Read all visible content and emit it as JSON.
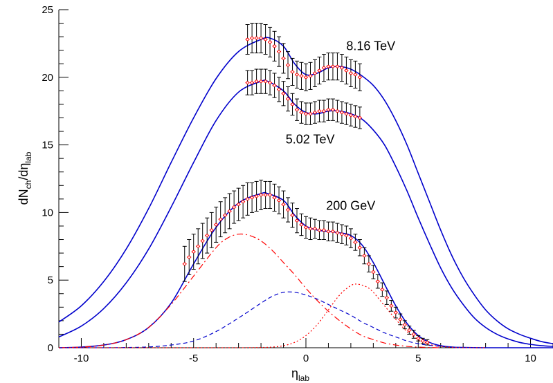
{
  "chart_data": {
    "type": "line",
    "title": "",
    "xlabel": "η",
    "xlabel_sub": "lab",
    "ylabel_main": "dN",
    "ylabel_sub1": "ch",
    "ylabel_mid": "/dη",
    "ylabel_sub2": "lab",
    "xlim": [
      -11,
      11
    ],
    "ylim": [
      0,
      25
    ],
    "xticks": [
      -10,
      -5,
      0,
      5,
      10
    ],
    "yticks": [
      0,
      5,
      10,
      15,
      20,
      25
    ],
    "grid": false,
    "annotations": [
      {
        "text": "8.16 TeV",
        "x": 1.8,
        "y": 22.0
      },
      {
        "text": "5.02 TeV",
        "x": -0.9,
        "y": 15.1
      },
      {
        "text": "200 GeV",
        "x": 0.9,
        "y": 10.2
      }
    ],
    "series": [
      {
        "style": "solid",
        "color": "#0000cc",
        "x": [
          -11,
          -10,
          -9,
          -8,
          -7,
          -6,
          -5,
          -4,
          -3,
          -2,
          -1.6,
          -1,
          -0.5,
          0,
          0.5,
          1,
          1.5,
          2,
          2.5,
          3,
          3.5,
          4,
          4.5,
          5,
          5.5,
          6,
          6.5,
          7,
          7.5,
          8,
          8.5,
          9,
          9.5,
          10,
          10.5,
          11
        ],
        "y": [
          1.9,
          3.1,
          4.9,
          7.3,
          10.3,
          13.7,
          17.0,
          19.9,
          21.9,
          22.8,
          22.9,
          22.3,
          21.0,
          20.2,
          20.3,
          20.7,
          20.8,
          20.6,
          20.1,
          19.4,
          18.3,
          16.8,
          15.0,
          12.9,
          10.8,
          8.7,
          6.8,
          5.2,
          3.9,
          2.8,
          2.0,
          1.4,
          1.0,
          0.7,
          0.45,
          0.3
        ]
      },
      {
        "style": "solid",
        "color": "#0000cc",
        "x": [
          -11,
          -10,
          -9,
          -8,
          -7,
          -6,
          -5,
          -4,
          -3,
          -2,
          -1.7,
          -1,
          -0.5,
          0,
          0.5,
          1,
          1.5,
          2,
          2.5,
          3,
          3.5,
          4,
          4.5,
          5,
          5.5,
          6,
          6.5,
          7,
          7.5,
          8,
          8.5,
          9,
          9.5,
          10,
          10.5,
          11
        ],
        "y": [
          0.8,
          1.6,
          2.9,
          4.8,
          7.3,
          10.4,
          13.7,
          16.8,
          18.9,
          19.7,
          19.7,
          19.0,
          18.0,
          17.4,
          17.3,
          17.5,
          17.5,
          17.3,
          16.9,
          16.1,
          15.0,
          13.4,
          11.6,
          9.6,
          7.7,
          5.9,
          4.4,
          3.2,
          2.2,
          1.5,
          1.0,
          0.65,
          0.4,
          0.25,
          0.15,
          0.1
        ]
      },
      {
        "style": "solid",
        "color": "#0000cc",
        "x": [
          -11,
          -10,
          -9,
          -8,
          -7,
          -6,
          -5,
          -4,
          -3,
          -2,
          -1.7,
          -1,
          -0.5,
          0,
          0.5,
          1,
          1.5,
          2,
          2.5,
          3,
          3.5,
          4,
          4.5,
          5,
          5.5,
          6,
          6.5,
          7,
          8,
          9,
          10,
          11
        ],
        "y": [
          0.0,
          0.05,
          0.2,
          0.6,
          1.5,
          3.3,
          6.2,
          8.9,
          10.7,
          11.4,
          11.4,
          10.9,
          9.8,
          9.0,
          8.7,
          8.6,
          8.5,
          8.3,
          7.6,
          6.3,
          4.7,
          3.1,
          1.8,
          0.9,
          0.4,
          0.15,
          0.05,
          0.02,
          0.0,
          0.0,
          0.0,
          0.0
        ]
      },
      {
        "style": "dashdot",
        "color": "#ff0000",
        "x": [
          -11,
          -10,
          -9,
          -8,
          -7,
          -6,
          -5,
          -4,
          -3.5,
          -3,
          -2.5,
          -2,
          -1.5,
          -1,
          -0.5,
          0,
          0.5,
          1,
          1.5,
          2,
          2.5,
          3,
          3.5,
          4,
          4.5,
          5,
          5.5,
          6
        ],
        "y": [
          0.0,
          0.05,
          0.2,
          0.6,
          1.5,
          3.2,
          5.3,
          7.4,
          8.1,
          8.4,
          8.3,
          7.9,
          7.2,
          6.3,
          5.4,
          4.4,
          3.5,
          2.7,
          2.0,
          1.4,
          0.9,
          0.6,
          0.35,
          0.2,
          0.1,
          0.05,
          0.02,
          0.0
        ]
      },
      {
        "style": "dashed",
        "color": "#0000cc",
        "x": [
          -11,
          -10,
          -9,
          -8,
          -7,
          -6,
          -5,
          -4,
          -3,
          -2,
          -1.5,
          -1,
          -0.5,
          0,
          0.5,
          1,
          1.5,
          2,
          2.5,
          3,
          3.5,
          4,
          4.5,
          5,
          5.5,
          6,
          6.5,
          7,
          8
        ],
        "y": [
          0.0,
          0.0,
          0.0,
          0.02,
          0.06,
          0.2,
          0.5,
          1.2,
          2.2,
          3.3,
          3.8,
          4.1,
          4.1,
          3.9,
          3.6,
          3.2,
          2.8,
          2.4,
          1.9,
          1.5,
          1.1,
          0.8,
          0.5,
          0.3,
          0.18,
          0.1,
          0.05,
          0.02,
          0.0
        ]
      },
      {
        "style": "dotted",
        "color": "#ff0000",
        "x": [
          -11,
          -8,
          -6,
          -4,
          -3,
          -2,
          -1.5,
          -1,
          -0.5,
          0,
          0.5,
          1,
          1.5,
          2,
          2.3,
          2.7,
          3,
          3.5,
          4,
          4.5,
          5,
          5.5,
          6,
          6.5,
          7,
          8
        ],
        "y": [
          0.0,
          0.0,
          0.0,
          0.0,
          0.0,
          0.02,
          0.05,
          0.15,
          0.4,
          0.9,
          1.7,
          2.8,
          3.9,
          4.6,
          4.7,
          4.5,
          4.1,
          3.1,
          2.1,
          1.2,
          0.6,
          0.25,
          0.1,
          0.03,
          0.0,
          0.0
        ]
      }
    ],
    "data_points": [
      {
        "label": "8.16 TeV",
        "color": "#ff0000",
        "err_color": "#000000",
        "x": [
          -2.6,
          -2.4,
          -2.2,
          -2.0,
          -1.8,
          -1.6,
          -1.4,
          -1.2,
          -1.0,
          -0.8,
          -0.6,
          -0.4,
          -0.2,
          0.0,
          0.2,
          0.4,
          0.6,
          0.8,
          1.0,
          1.2,
          1.4,
          1.6,
          1.8,
          2.0,
          2.2,
          2.4
        ],
        "y": [
          22.8,
          22.9,
          22.9,
          22.9,
          22.8,
          22.6,
          22.3,
          21.9,
          21.4,
          20.9,
          20.4,
          20.2,
          20.1,
          20.0,
          20.1,
          20.3,
          20.5,
          20.7,
          20.8,
          20.8,
          20.8,
          20.7,
          20.5,
          20.3,
          20.2,
          20.0
        ],
        "err": [
          1.1,
          1.1,
          1.1,
          1.1,
          1.1,
          1.1,
          1.1,
          1.1,
          1.1,
          1.0,
          1.0,
          1.0,
          1.0,
          1.0,
          1.0,
          1.0,
          1.0,
          1.0,
          1.0,
          1.0,
          1.0,
          1.0,
          1.0,
          1.0,
          1.0,
          1.0
        ]
      },
      {
        "label": "5.02 TeV",
        "color": "#ff0000",
        "err_color": "#000000",
        "x": [
          -2.6,
          -2.4,
          -2.2,
          -2.0,
          -1.8,
          -1.6,
          -1.4,
          -1.2,
          -1.0,
          -0.8,
          -0.6,
          -0.4,
          -0.2,
          0.0,
          0.2,
          0.4,
          0.6,
          0.8,
          1.0,
          1.2,
          1.4,
          1.6,
          1.8,
          2.0,
          2.2,
          2.4
        ],
        "y": [
          19.6,
          19.6,
          19.7,
          19.7,
          19.7,
          19.6,
          19.4,
          19.1,
          18.8,
          18.4,
          18.0,
          17.6,
          17.4,
          17.3,
          17.3,
          17.4,
          17.5,
          17.5,
          17.6,
          17.6,
          17.5,
          17.4,
          17.3,
          17.2,
          17.1,
          17.0
        ],
        "err": [
          0.9,
          0.9,
          0.9,
          0.9,
          0.9,
          0.9,
          0.9,
          0.9,
          0.9,
          0.9,
          0.8,
          0.8,
          0.8,
          0.8,
          0.8,
          0.8,
          0.8,
          0.8,
          0.8,
          0.8,
          0.8,
          0.8,
          0.8,
          0.8,
          0.8,
          0.8
        ]
      },
      {
        "label": "200 GeV",
        "color": "#ff0000",
        "err_color": "#000000",
        "x": [
          -5.4,
          -5.2,
          -5.0,
          -4.8,
          -4.6,
          -4.4,
          -4.2,
          -4.0,
          -3.8,
          -3.6,
          -3.4,
          -3.2,
          -3.0,
          -2.8,
          -2.6,
          -2.4,
          -2.2,
          -2.0,
          -1.8,
          -1.6,
          -1.4,
          -1.2,
          -1.0,
          -0.8,
          -0.6,
          -0.4,
          -0.2,
          0.0,
          0.2,
          0.4,
          0.6,
          0.8,
          1.0,
          1.2,
          1.4,
          1.6,
          1.8,
          2.0,
          2.2,
          2.4,
          2.6,
          2.8,
          3.0,
          3.2,
          3.4,
          3.6,
          3.8,
          4.0,
          4.2,
          4.4,
          4.6,
          4.8,
          5.0,
          5.2,
          5.4
        ],
        "y": [
          6.2,
          6.7,
          7.1,
          7.5,
          7.9,
          8.3,
          8.7,
          9.1,
          9.5,
          9.8,
          10.1,
          10.4,
          10.6,
          10.8,
          11.0,
          11.1,
          11.2,
          11.3,
          11.3,
          11.3,
          11.1,
          10.9,
          10.6,
          10.2,
          9.8,
          9.4,
          9.1,
          8.9,
          8.8,
          8.8,
          8.7,
          8.7,
          8.6,
          8.6,
          8.5,
          8.4,
          8.3,
          8.1,
          7.8,
          7.4,
          6.8,
          6.2,
          5.6,
          4.9,
          4.3,
          3.7,
          3.1,
          2.6,
          2.1,
          1.7,
          1.3,
          1.0,
          0.7,
          0.5,
          0.4
        ],
        "err": [
          1.3,
          1.3,
          1.3,
          1.3,
          1.3,
          1.3,
          1.3,
          1.3,
          1.3,
          1.3,
          1.3,
          1.2,
          1.2,
          1.2,
          1.2,
          1.1,
          1.1,
          1.1,
          1.0,
          1.0,
          1.0,
          1.0,
          1.0,
          0.9,
          0.9,
          0.9,
          0.8,
          0.8,
          0.8,
          0.7,
          0.7,
          0.7,
          0.7,
          0.7,
          0.7,
          0.7,
          0.7,
          0.7,
          0.6,
          0.6,
          0.6,
          0.6,
          0.5,
          0.5,
          0.5,
          0.5,
          0.4,
          0.4,
          0.4,
          0.3,
          0.3,
          0.3,
          0.2,
          0.2,
          0.2
        ]
      }
    ]
  }
}
